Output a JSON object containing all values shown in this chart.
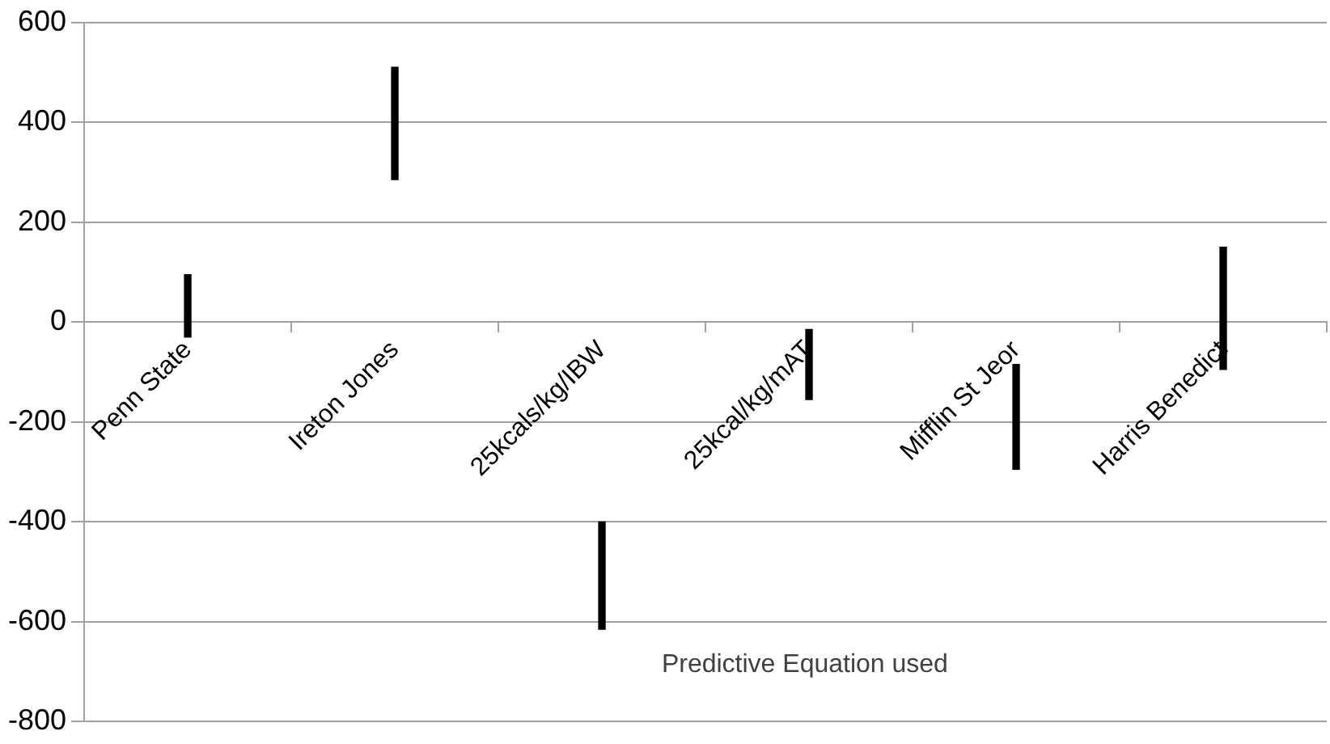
{
  "chart_data": {
    "type": "bar",
    "xlabel": "Predictive Equation used",
    "categories": [
      "Penn State",
      "Ireton Jones",
      "25kcals/kg/IBW",
      "25kcal/kg/mAT",
      "Mifflin St Jeor",
      "Harris Benedict"
    ],
    "base": [
      -30,
      285,
      -615,
      -155,
      -295,
      -95
    ],
    "values": [
      125,
      225,
      215,
      140,
      210,
      245
    ],
    "color": "#000000",
    "ylim": [
      -800,
      600
    ],
    "yticks": [
      -800,
      -600,
      -400,
      -200,
      0,
      200,
      400,
      600
    ],
    "grid": "y",
    "legend": false
  }
}
